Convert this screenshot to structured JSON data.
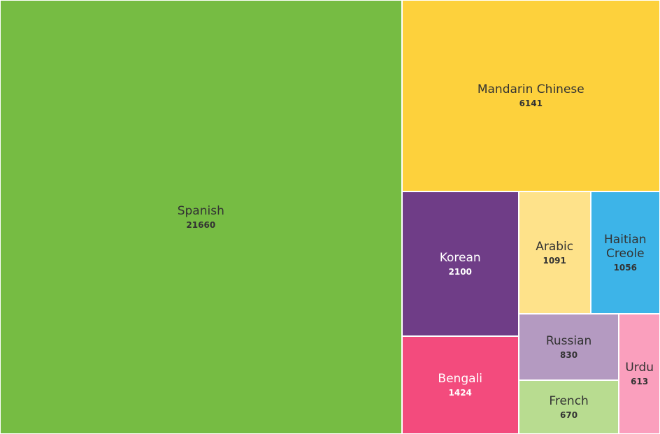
{
  "chart_data": {
    "type": "treemap",
    "categories": [
      "Spanish",
      "Mandarin Chinese",
      "Korean",
      "Bengali",
      "Arabic",
      "Haitian Creole",
      "Russian",
      "French",
      "Urdu"
    ],
    "values": [
      21660,
      6141,
      2100,
      1424,
      1091,
      1056,
      830,
      670,
      613
    ],
    "colors": [
      "#76bc43",
      "#fdd13c",
      "#6f3d87",
      "#f34b7d",
      "#fee28a",
      "#3db4e8",
      "#b49ac1",
      "#b8dc90",
      "#fa9fbd"
    ]
  }
}
